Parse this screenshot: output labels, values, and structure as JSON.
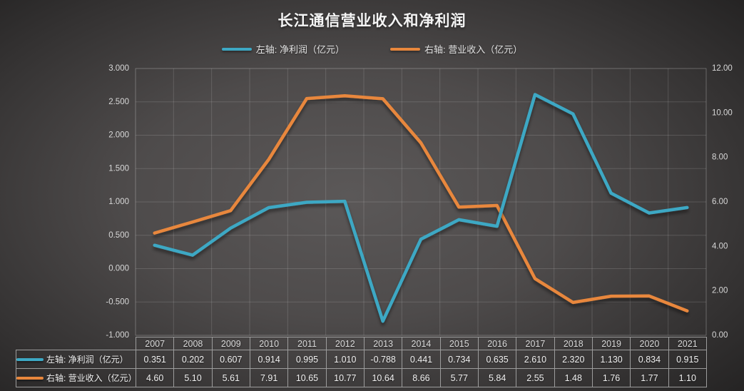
{
  "title": "长江通信营业收入和净利润",
  "legend": {
    "net_profit": "左轴: 净利润（亿元）",
    "revenue": "右轴: 营业收入（亿元）"
  },
  "colors": {
    "net_profit": "#3DA8C4",
    "revenue": "#E8873C",
    "zero_line": "#D8DC25",
    "grid": "rgba(255,255,255,0.14)",
    "axis_text": "#d8d8d8"
  },
  "chart_data": {
    "type": "line",
    "title": "长江通信营业收入和净利润",
    "categories": [
      "2007",
      "2008",
      "2009",
      "2010",
      "2011",
      "2012",
      "2013",
      "2014",
      "2015",
      "2016",
      "2017",
      "2018",
      "2019",
      "2020",
      "2021"
    ],
    "series": [
      {
        "name": "左轴: 净利润（亿元）",
        "axis": "left",
        "color_key": "net_profit",
        "values": [
          0.351,
          0.202,
          0.607,
          0.914,
          0.995,
          1.01,
          -0.788,
          0.441,
          0.734,
          0.635,
          2.61,
          2.32,
          1.13,
          0.834,
          0.915
        ]
      },
      {
        "name": "右轴: 营业收入（亿元）",
        "axis": "right",
        "color_key": "revenue",
        "values": [
          4.6,
          5.1,
          5.61,
          7.91,
          10.65,
          10.77,
          10.64,
          8.66,
          5.77,
          5.84,
          2.55,
          1.48,
          1.76,
          1.77,
          1.1
        ]
      }
    ],
    "left_axis": {
      "min": -1,
      "max": 3,
      "ticks": [
        "3.000",
        "2.500",
        "2.000",
        "1.500",
        "1.000",
        "0.500",
        "0.000",
        "-0.500",
        "-1.000"
      ]
    },
    "right_axis": {
      "min": 0,
      "max": 12,
      "ticks": [
        "12.00",
        "10.00",
        "8.00",
        "6.00",
        "4.00",
        "2.00",
        "0.00"
      ]
    },
    "zero_line": true,
    "grid": true,
    "legend_position": "top"
  },
  "table": {
    "years": [
      "2007",
      "2008",
      "2009",
      "2010",
      "2011",
      "2012",
      "2013",
      "2014",
      "2015",
      "2016",
      "2017",
      "2018",
      "2019",
      "2020",
      "2021"
    ],
    "rows": [
      {
        "label": "左轴: 净利润（亿元）",
        "color_key": "net_profit",
        "values": [
          "0.351",
          "0.202",
          "0.607",
          "0.914",
          "0.995",
          "1.010",
          "-0.788",
          "0.441",
          "0.734",
          "0.635",
          "2.610",
          "2.320",
          "1.130",
          "0.834",
          "0.915"
        ]
      },
      {
        "label": "右轴: 营业收入（亿元）",
        "color_key": "revenue",
        "values": [
          "4.60",
          "5.10",
          "5.61",
          "7.91",
          "10.65",
          "10.77",
          "10.64",
          "8.66",
          "5.77",
          "5.84",
          "2.55",
          "1.48",
          "1.76",
          "1.77",
          "1.10"
        ]
      }
    ]
  }
}
